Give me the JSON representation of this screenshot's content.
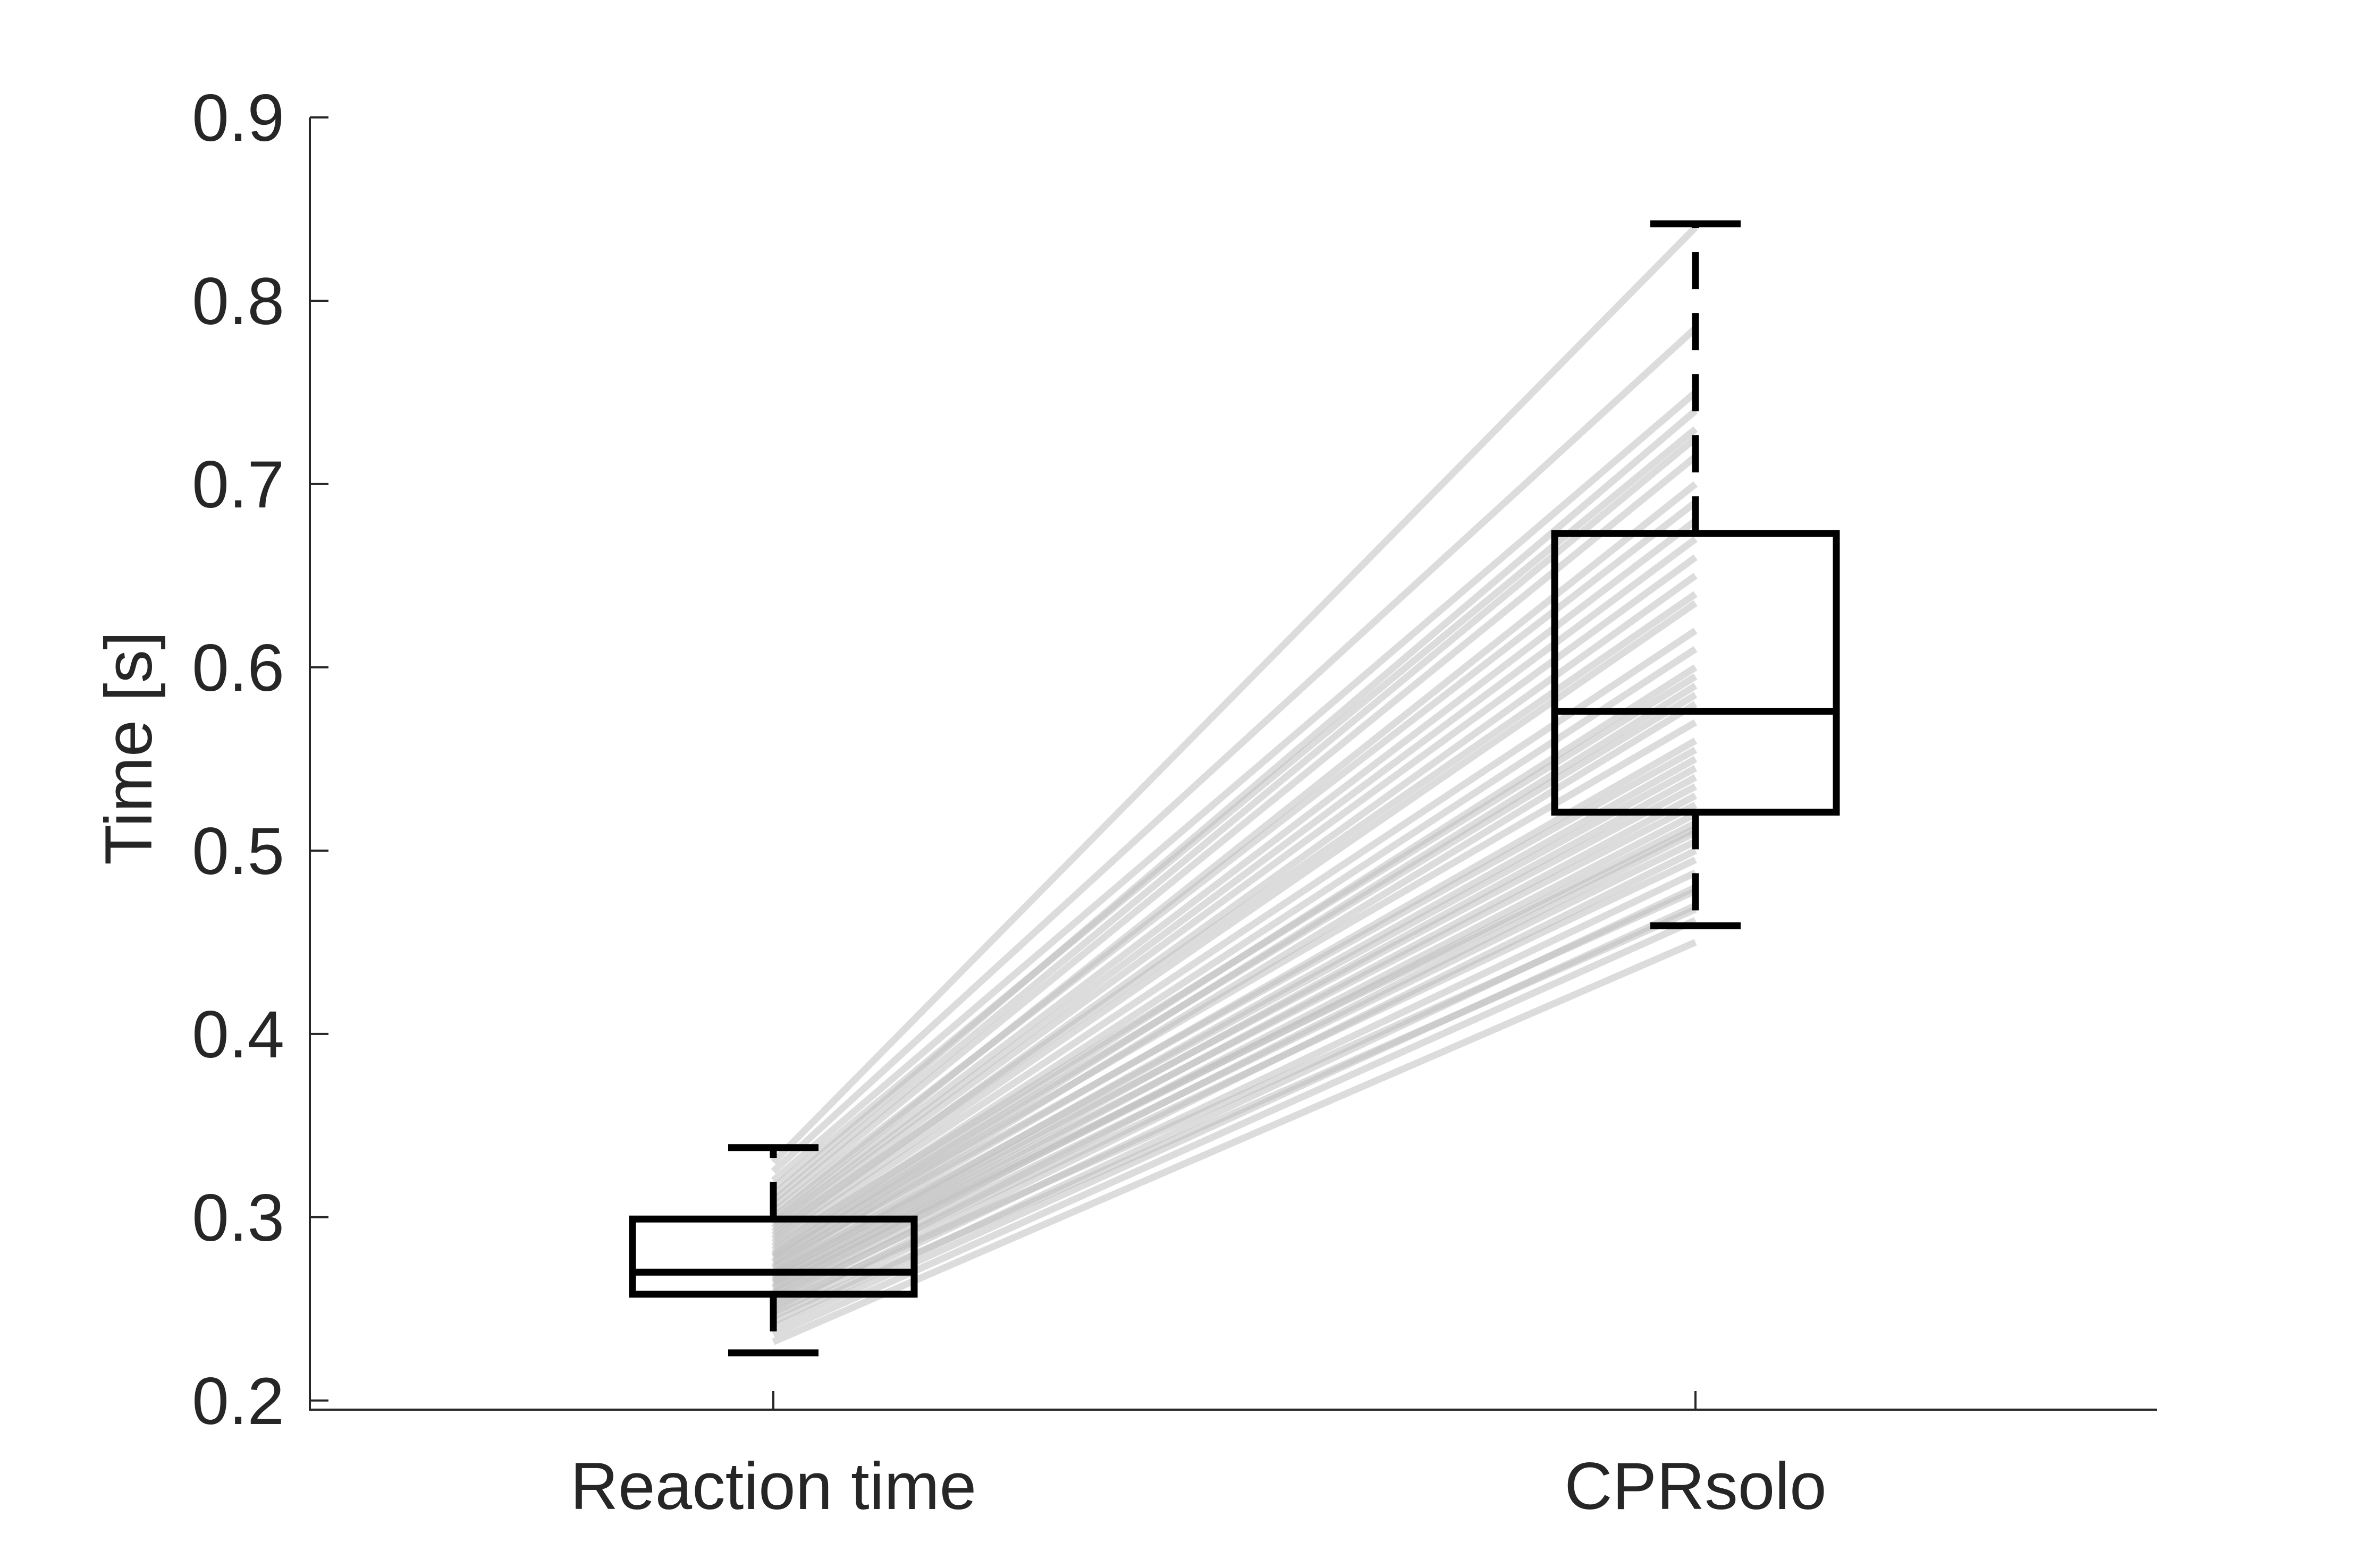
{
  "chart_data": {
    "type": "box",
    "title": "",
    "xlabel": "",
    "ylabel": "Time [s]",
    "ylim": [
      0.195,
      0.9
    ],
    "yticks": [
      0.2,
      0.3,
      0.4,
      0.5,
      0.6,
      0.7,
      0.8,
      0.9
    ],
    "ytick_labels": [
      "0.2",
      "0.3",
      "0.4",
      "0.5",
      "0.6",
      "0.7",
      "0.8",
      "0.9"
    ],
    "categories": [
      "Reaction time",
      "CPRsolo"
    ],
    "grid": false,
    "legend": "none",
    "boxes": [
      {
        "category": "Reaction time",
        "whisker_low": 0.226,
        "q1": 0.258,
        "median": 0.27,
        "q3": 0.299,
        "whisker_high": 0.338
      },
      {
        "category": "CPRsolo",
        "whisker_low": 0.459,
        "q1": 0.521,
        "median": 0.576,
        "q3": 0.673,
        "whisker_high": 0.842
      }
    ],
    "paired_lines": {
      "color": "#bfbfbf",
      "pairs": [
        [
          0.232,
          0.45
        ],
        [
          0.236,
          0.462
        ],
        [
          0.24,
          0.47
        ],
        [
          0.243,
          0.48
        ],
        [
          0.246,
          0.468
        ],
        [
          0.248,
          0.488
        ],
        [
          0.25,
          0.5
        ],
        [
          0.252,
          0.478
        ],
        [
          0.254,
          0.51
        ],
        [
          0.256,
          0.495
        ],
        [
          0.258,
          0.505
        ],
        [
          0.259,
          0.52
        ],
        [
          0.261,
          0.515
        ],
        [
          0.262,
          0.53
        ],
        [
          0.264,
          0.512
        ],
        [
          0.265,
          0.54
        ],
        [
          0.266,
          0.525
        ],
        [
          0.268,
          0.55
        ],
        [
          0.269,
          0.535
        ],
        [
          0.27,
          0.545
        ],
        [
          0.272,
          0.56
        ],
        [
          0.273,
          0.58
        ],
        [
          0.275,
          0.555
        ],
        [
          0.276,
          0.59
        ],
        [
          0.278,
          0.57
        ],
        [
          0.279,
          0.6
        ],
        [
          0.28,
          0.585
        ],
        [
          0.282,
          0.61
        ],
        [
          0.284,
          0.595
        ],
        [
          0.286,
          0.62
        ],
        [
          0.288,
          0.635
        ],
        [
          0.29,
          0.65
        ],
        [
          0.292,
          0.64
        ],
        [
          0.294,
          0.66
        ],
        [
          0.296,
          0.67
        ],
        [
          0.298,
          0.68
        ],
        [
          0.3,
          0.7
        ],
        [
          0.303,
          0.69
        ],
        [
          0.306,
          0.715
        ],
        [
          0.309,
          0.725
        ],
        [
          0.312,
          0.74
        ],
        [
          0.316,
          0.73
        ],
        [
          0.32,
          0.75
        ],
        [
          0.325,
          0.785
        ],
        [
          0.33,
          0.84
        ]
      ]
    }
  }
}
